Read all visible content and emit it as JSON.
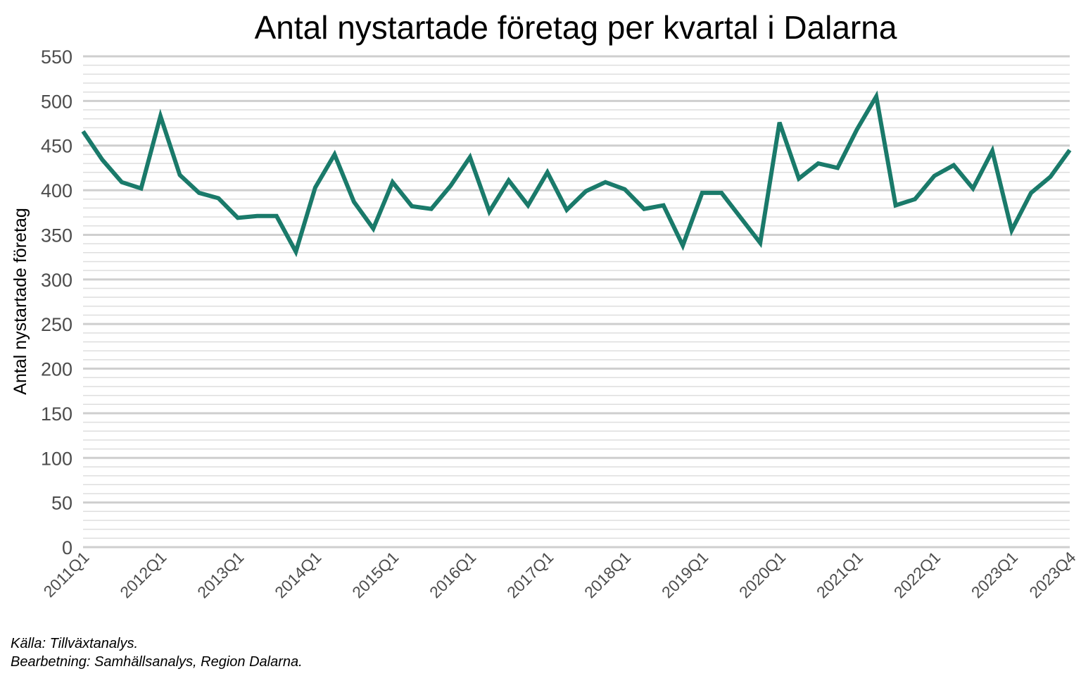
{
  "chart_data": {
    "type": "line",
    "title": "Antal nystartade företag per kvartal i Dalarna",
    "ylabel": "Antal nystartade företag",
    "xlabel": "",
    "ylim": [
      0,
      550
    ],
    "y_ticks": [
      "0",
      "50",
      "100",
      "150",
      "200",
      "250",
      "300",
      "350",
      "400",
      "450",
      "500",
      "550"
    ],
    "x_tick_labels": [
      "2011Q1",
      "2012Q1",
      "2013Q1",
      "2014Q1",
      "2015Q1",
      "2016Q1",
      "2017Q1",
      "2018Q1",
      "2019Q1",
      "2020Q1",
      "2021Q1",
      "2022Q1",
      "2023Q1",
      "2023Q4"
    ],
    "grid": true,
    "line_color": "#1a7a6a",
    "x": [
      "2011Q1",
      "2011Q2",
      "2011Q3",
      "2011Q4",
      "2012Q1",
      "2012Q2",
      "2012Q3",
      "2012Q4",
      "2013Q1",
      "2013Q2",
      "2013Q3",
      "2013Q4",
      "2014Q1",
      "2014Q2",
      "2014Q3",
      "2014Q4",
      "2015Q1",
      "2015Q2",
      "2015Q3",
      "2015Q4",
      "2016Q1",
      "2016Q2",
      "2016Q3",
      "2016Q4",
      "2017Q1",
      "2017Q2",
      "2017Q3",
      "2017Q4",
      "2018Q1",
      "2018Q2",
      "2018Q3",
      "2018Q4",
      "2019Q1",
      "2019Q2",
      "2019Q3",
      "2019Q4",
      "2020Q1",
      "2020Q2",
      "2020Q3",
      "2020Q4",
      "2021Q1",
      "2021Q2",
      "2021Q3",
      "2021Q4",
      "2022Q1",
      "2022Q2",
      "2022Q3",
      "2022Q4",
      "2023Q1",
      "2023Q2",
      "2023Q3",
      "2023Q4"
    ],
    "values": [
      466,
      434,
      409,
      402,
      483,
      417,
      397,
      391,
      369,
      371,
      371,
      331,
      403,
      440,
      387,
      357,
      409,
      382,
      379,
      405,
      437,
      376,
      411,
      383,
      420,
      378,
      399,
      409,
      401,
      379,
      383,
      338,
      397,
      397,
      369,
      341,
      476,
      413,
      430,
      425,
      468,
      505,
      383,
      390,
      416,
      428,
      402,
      444,
      355,
      397,
      415,
      445
    ],
    "caption": [
      "Källa: Tillväxtanalys.",
      "Bearbetning: Samhällsanalys, Region Dalarna."
    ]
  }
}
